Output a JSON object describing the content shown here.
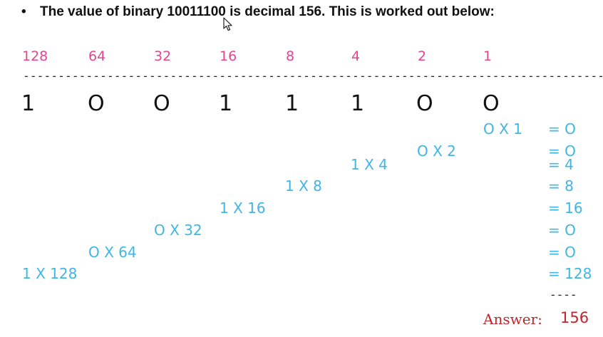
{
  "heading": {
    "bullet": "•",
    "text": "The value of binary 10011100 is decimal 156. This is worked out below:"
  },
  "place_values": [
    "128",
    "64",
    "32",
    "16",
    "8",
    "4",
    "2",
    "1"
  ],
  "divider": "------------------------------------------------------------------------------------",
  "digits": [
    "1",
    "O",
    "O",
    "1",
    "1",
    "1",
    "O",
    "O"
  ],
  "working": [
    {
      "expr": "O X 1",
      "result": "= O"
    },
    {
      "expr": "O X 2",
      "result": "= O"
    },
    {
      "expr": "1 X 4",
      "result": "= 4"
    },
    {
      "expr": "1 X 8",
      "result": "= 8"
    },
    {
      "expr": "1 X 16",
      "result": "= 16"
    },
    {
      "expr": "O X 32",
      "result": "= O"
    },
    {
      "expr": "O X 64",
      "result": "= O"
    },
    {
      "expr": "1 X 128",
      "result": "= 128"
    }
  ],
  "sum_line": "----",
  "answer": {
    "label": "Answer:",
    "value": "156"
  },
  "colors": {
    "heading": "#111111",
    "place_value": "#e3468f",
    "digit": "#111111",
    "working": "#3fb6e3",
    "answer": "#c0272d"
  },
  "icons": {
    "cursor": "mouse-pointer-icon"
  }
}
